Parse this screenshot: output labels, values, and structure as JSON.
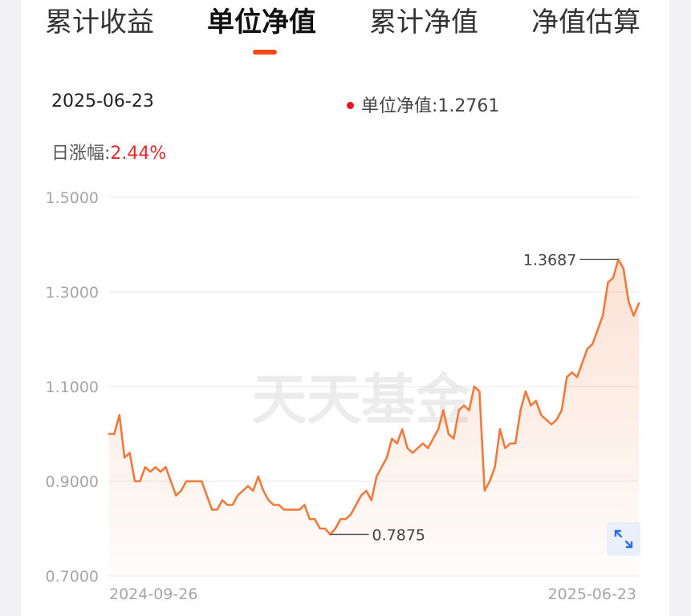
{
  "tabs": [
    {
      "label": "累计收益",
      "active": false
    },
    {
      "label": "单位净值",
      "active": true
    },
    {
      "label": "累计净值",
      "active": false
    },
    {
      "label": "净值估算",
      "active": false
    }
  ],
  "info": {
    "date": "2025-06-23",
    "nav_label": "单位净值:",
    "nav_value": "1.2761",
    "change_label": "日涨幅:",
    "change_value": "2.44%"
  },
  "watermark": "天天基金",
  "colors": {
    "accent": "#f04a1a",
    "line": "#ef7a3c",
    "up": "#e0282d",
    "legend_dot": "#e8161d"
  },
  "icons": {
    "expand": "expand-arrows-icon"
  },
  "chart_data": {
    "type": "area",
    "title": "",
    "xlabel": "",
    "ylabel": "",
    "ylim": [
      0.7,
      1.5
    ],
    "yticks": [
      "1.5000",
      "1.3000",
      "1.1000",
      "0.9000",
      "0.7000"
    ],
    "xrange": [
      "2024-09-26",
      "2025-06-23"
    ],
    "x_tick_labels": [
      "2024-09-26",
      "2025-06-23"
    ],
    "grid": true,
    "series": [
      {
        "values": [
          1.0,
          1.0,
          1.04,
          0.95,
          0.96,
          0.9,
          0.9,
          0.93,
          0.92,
          0.93,
          0.92,
          0.93,
          0.9,
          0.87,
          0.88,
          0.9,
          0.9,
          0.9,
          0.9,
          0.87,
          0.84,
          0.84,
          0.86,
          0.85,
          0.85,
          0.87,
          0.88,
          0.89,
          0.88,
          0.91,
          0.88,
          0.86,
          0.85,
          0.85,
          0.84,
          0.84,
          0.84,
          0.84,
          0.85,
          0.82,
          0.82,
          0.8,
          0.8,
          0.7875,
          0.8,
          0.82,
          0.82,
          0.83,
          0.85,
          0.87,
          0.88,
          0.86,
          0.91,
          0.93,
          0.95,
          0.99,
          0.98,
          1.01,
          0.97,
          0.96,
          0.97,
          0.98,
          0.97,
          0.99,
          1.01,
          1.05,
          1.0,
          0.99,
          1.05,
          1.06,
          1.05,
          1.1,
          1.09,
          0.88,
          0.9,
          0.93,
          1.01,
          0.97,
          0.98,
          0.98,
          1.05,
          1.09,
          1.06,
          1.07,
          1.04,
          1.03,
          1.02,
          1.03,
          1.05,
          1.12,
          1.13,
          1.12,
          1.15,
          1.18,
          1.19,
          1.22,
          1.25,
          1.32,
          1.33,
          1.3687,
          1.35,
          1.28,
          1.25,
          1.2761
        ]
      }
    ],
    "annotations": [
      {
        "label": "1.3687",
        "value": 1.3687
      },
      {
        "label": "0.7875",
        "value": 0.7875
      }
    ]
  }
}
